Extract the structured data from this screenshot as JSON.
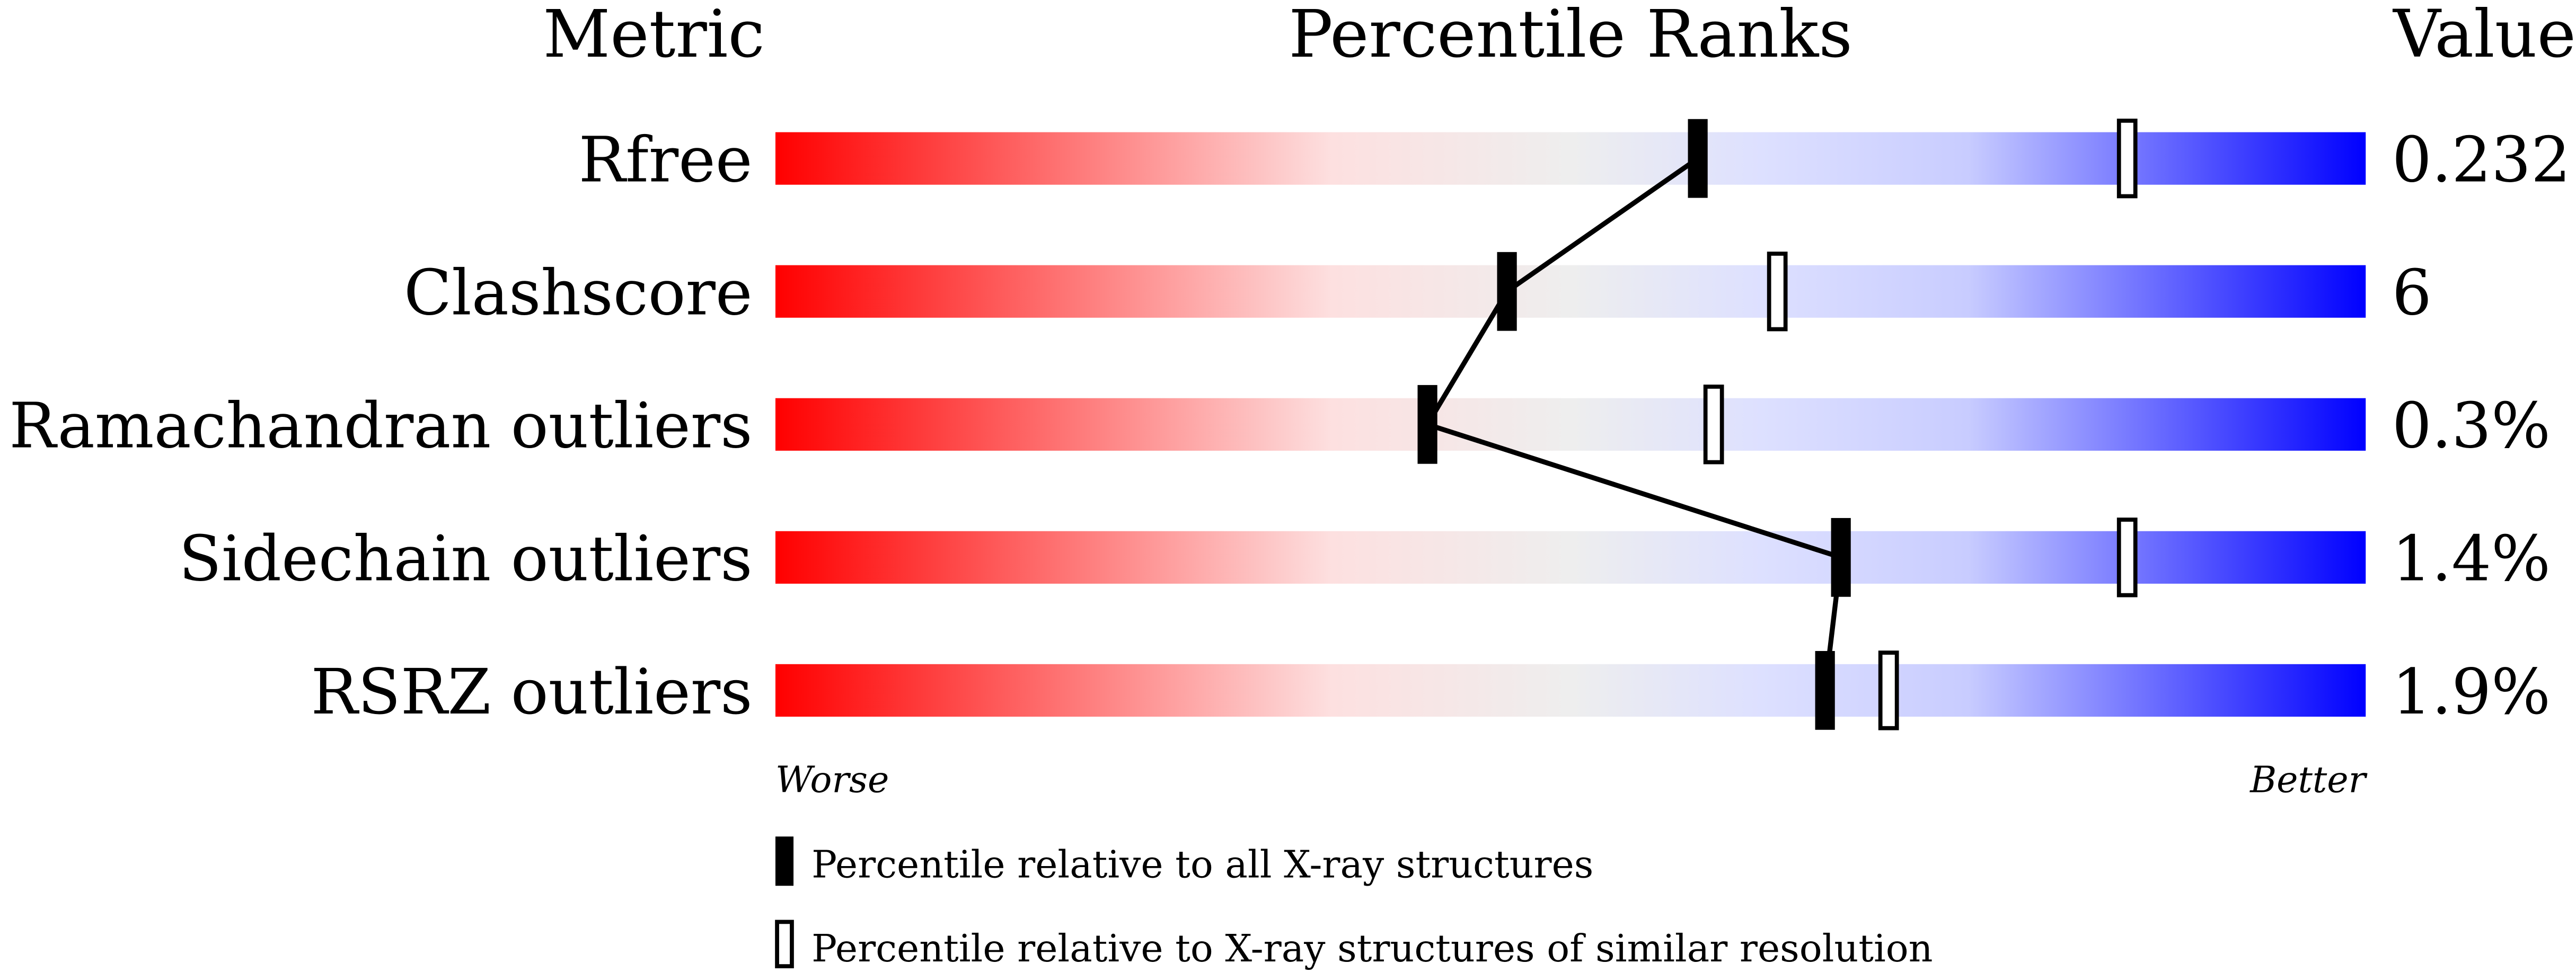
{
  "chart_data": {
    "type": "percentile-slider",
    "headers": {
      "metric": "Metric",
      "ranks": "Percentile Ranks",
      "value": "Value"
    },
    "xlim": [
      0,
      100
    ],
    "axis_labels": {
      "left": "Worse",
      "right": "Better"
    },
    "gradient_colors": [
      "#ff0000",
      "#fde0e0",
      "#eeeeee",
      "#dde0ff",
      "#0000ff"
    ],
    "rows": [
      {
        "metric": "Rfree",
        "value": "0.232",
        "percentile_all": 58,
        "percentile_similar": 85
      },
      {
        "metric": "Clashscore",
        "value": "6",
        "percentile_all": 46,
        "percentile_similar": 63
      },
      {
        "metric": "Ramachandran outliers",
        "value": "0.3%",
        "percentile_all": 41,
        "percentile_similar": 59
      },
      {
        "metric": "Sidechain outliers",
        "value": "1.4%",
        "percentile_all": 67,
        "percentile_similar": 85
      },
      {
        "metric": "RSRZ outliers",
        "value": "1.9%",
        "percentile_all": 66,
        "percentile_similar": 70
      }
    ],
    "legend": [
      {
        "marker": "filled",
        "label": "Percentile relative to all X-ray structures"
      },
      {
        "marker": "open",
        "label": "Percentile relative to X-ray structures of similar resolution"
      }
    ]
  }
}
